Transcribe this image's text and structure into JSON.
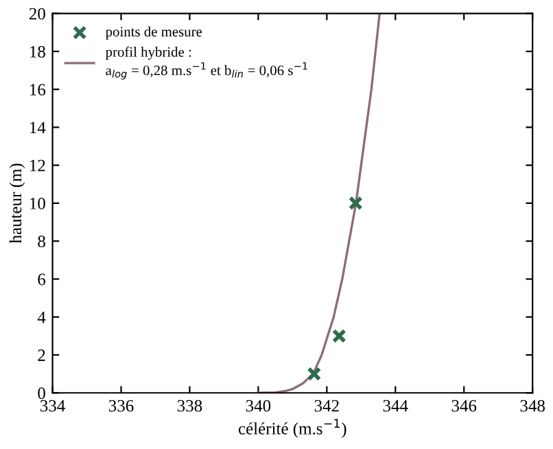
{
  "chart_data": {
    "type": "scatter",
    "xlabel": "célérité (m.s$^{−1}$)",
    "ylabel": "hauteur (m)",
    "xlim": [
      334,
      348
    ],
    "xticks": [
      334,
      336,
      338,
      340,
      342,
      344,
      346,
      348
    ],
    "ylim": [
      0,
      20
    ],
    "yticks": [
      0,
      2,
      4,
      6,
      8,
      10,
      12,
      14,
      16,
      18,
      20
    ],
    "grid": false,
    "legend": "top left",
    "series": [
      {
        "name": "points de mesure",
        "marker": "cross",
        "color": "#2e6b4f",
        "x": [
          341.63,
          342.36,
          342.84
        ],
        "values": [
          1,
          3,
          10
        ]
      },
      {
        "name": "profil hybride :\na$_{log}$ = 0,28 m.s$^{−1}$ et b$_{lin}$ = 0,06 s$^{−1}$",
        "type": "line",
        "marker": "none",
        "color": "#8b6b7a",
        "x": [
          340.0,
          340.5,
          340.8,
          341.0,
          341.3,
          341.6,
          341.85,
          342.2,
          342.45,
          342.65,
          342.85,
          343.0,
          343.15,
          343.3,
          343.42,
          343.54
        ],
        "values": [
          0,
          0.02,
          0.1,
          0.2,
          0.5,
          1,
          2,
          4,
          6,
          8,
          10,
          12,
          14,
          16,
          18,
          20
        ]
      }
    ]
  }
}
